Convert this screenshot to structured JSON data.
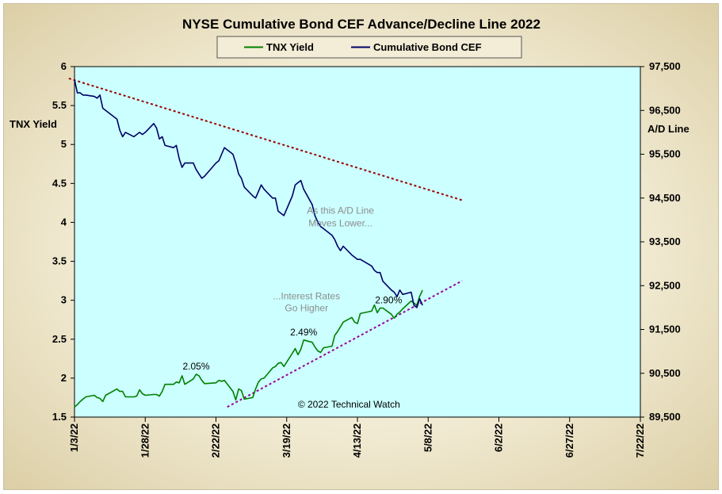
{
  "chart_data": {
    "type": "line",
    "title": "NYSE Cumulative  Bond CEF Advance/Decline  Line 2022",
    "legend": {
      "placement": "top-center",
      "entries": [
        "TNX Yield",
        "Cumulative Bond CEF"
      ]
    },
    "x_axis": {
      "type": "date",
      "range": [
        "2022-01-03",
        "2022-07-22"
      ],
      "tick_labels": [
        "1/3/22",
        "1/28/22",
        "2/22/22",
        "3/19/22",
        "4/13/22",
        "5/8/22",
        "6/2/22",
        "6/27/22",
        "7/22/22"
      ]
    },
    "y_left": {
      "label": "TNX Yield",
      "range": [
        1.5,
        6
      ],
      "tick_labels": [
        "1.5",
        "2",
        "2.5",
        "3",
        "3.5",
        "4",
        "4.5",
        "5",
        "5.5",
        "6"
      ]
    },
    "y_right": {
      "label": "A/D Line",
      "range": [
        89500,
        97500
      ],
      "tick_labels": [
        "89,500",
        "90,500",
        "91,500",
        "92,500",
        "93,500",
        "94,500",
        "95,500",
        "96,500",
        "97,500"
      ]
    },
    "grid": false,
    "series": [
      {
        "name": "TNX Yield",
        "axis": "left",
        "color": "#008000",
        "points": [
          [
            "2022-01-03",
            1.63
          ],
          [
            "2022-01-04",
            1.66
          ],
          [
            "2022-01-05",
            1.7
          ],
          [
            "2022-01-06",
            1.73
          ],
          [
            "2022-01-07",
            1.76
          ],
          [
            "2022-01-10",
            1.78
          ],
          [
            "2022-01-11",
            1.75
          ],
          [
            "2022-01-12",
            1.74
          ],
          [
            "2022-01-13",
            1.7
          ],
          [
            "2022-01-14",
            1.78
          ],
          [
            "2022-01-18",
            1.86
          ],
          [
            "2022-01-19",
            1.83
          ],
          [
            "2022-01-20",
            1.83
          ],
          [
            "2022-01-21",
            1.76
          ],
          [
            "2022-01-24",
            1.76
          ],
          [
            "2022-01-25",
            1.77
          ],
          [
            "2022-01-26",
            1.85
          ],
          [
            "2022-01-27",
            1.8
          ],
          [
            "2022-01-28",
            1.78
          ],
          [
            "2022-01-31",
            1.79
          ],
          [
            "2022-02-01",
            1.79
          ],
          [
            "2022-02-02",
            1.77
          ],
          [
            "2022-02-03",
            1.83
          ],
          [
            "2022-02-04",
            1.92
          ],
          [
            "2022-02-07",
            1.92
          ],
          [
            "2022-02-08",
            1.95
          ],
          [
            "2022-02-09",
            1.94
          ],
          [
            "2022-02-10",
            2.03
          ],
          [
            "2022-02-11",
            1.92
          ],
          [
            "2022-02-14",
            1.99
          ],
          [
            "2022-02-15",
            2.05
          ],
          [
            "2022-02-16",
            2.03
          ],
          [
            "2022-02-17",
            1.97
          ],
          [
            "2022-02-18",
            1.93
          ],
          [
            "2022-02-22",
            1.94
          ],
          [
            "2022-02-23",
            1.97
          ],
          [
            "2022-02-24",
            1.96
          ],
          [
            "2022-02-25",
            1.97
          ],
          [
            "2022-02-28",
            1.83
          ],
          [
            "2022-03-01",
            1.72
          ],
          [
            "2022-03-02",
            1.86
          ],
          [
            "2022-03-03",
            1.84
          ],
          [
            "2022-03-04",
            1.73
          ],
          [
            "2022-03-07",
            1.75
          ],
          [
            "2022-03-08",
            1.86
          ],
          [
            "2022-03-09",
            1.95
          ],
          [
            "2022-03-10",
            1.99
          ],
          [
            "2022-03-11",
            2.0
          ],
          [
            "2022-03-14",
            2.13
          ],
          [
            "2022-03-15",
            2.15
          ],
          [
            "2022-03-16",
            2.19
          ],
          [
            "2022-03-17",
            2.2
          ],
          [
            "2022-03-18",
            2.15
          ],
          [
            "2022-03-21",
            2.32
          ],
          [
            "2022-03-22",
            2.38
          ],
          [
            "2022-03-23",
            2.3
          ],
          [
            "2022-03-24",
            2.37
          ],
          [
            "2022-03-25",
            2.49
          ],
          [
            "2022-03-28",
            2.46
          ],
          [
            "2022-03-29",
            2.4
          ],
          [
            "2022-03-30",
            2.35
          ],
          [
            "2022-03-31",
            2.33
          ],
          [
            "2022-04-01",
            2.39
          ],
          [
            "2022-04-04",
            2.41
          ],
          [
            "2022-04-05",
            2.55
          ],
          [
            "2022-04-06",
            2.6
          ],
          [
            "2022-04-07",
            2.66
          ],
          [
            "2022-04-08",
            2.72
          ],
          [
            "2022-04-11",
            2.78
          ],
          [
            "2022-04-12",
            2.72
          ],
          [
            "2022-04-13",
            2.7
          ],
          [
            "2022-04-14",
            2.83
          ],
          [
            "2022-04-18",
            2.86
          ],
          [
            "2022-04-19",
            2.94
          ],
          [
            "2022-04-20",
            2.84
          ],
          [
            "2022-04-21",
            2.9
          ],
          [
            "2022-04-22",
            2.9
          ],
          [
            "2022-04-25",
            2.82
          ],
          [
            "2022-04-26",
            2.77
          ],
          [
            "2022-04-27",
            2.82
          ],
          [
            "2022-04-28",
            2.85
          ],
          [
            "2022-04-29",
            2.89
          ],
          [
            "2022-05-02",
            2.99
          ],
          [
            "2022-05-03",
            2.96
          ],
          [
            "2022-05-04",
            2.94
          ],
          [
            "2022-05-05",
            3.05
          ],
          [
            "2022-05-06",
            3.13
          ]
        ]
      },
      {
        "name": "Cumulative Bond CEF",
        "axis": "right",
        "color": "#000066",
        "points": [
          [
            "2022-01-03",
            97200
          ],
          [
            "2022-01-04",
            96900
          ],
          [
            "2022-01-05",
            96900
          ],
          [
            "2022-01-06",
            96850
          ],
          [
            "2022-01-07",
            96850
          ],
          [
            "2022-01-10",
            96820
          ],
          [
            "2022-01-11",
            96780
          ],
          [
            "2022-01-12",
            96850
          ],
          [
            "2022-01-13",
            96550
          ],
          [
            "2022-01-14",
            96500
          ],
          [
            "2022-01-18",
            96300
          ],
          [
            "2022-01-19",
            96050
          ],
          [
            "2022-01-20",
            95900
          ],
          [
            "2022-01-21",
            96000
          ],
          [
            "2022-01-24",
            95900
          ],
          [
            "2022-01-25",
            95950
          ],
          [
            "2022-01-26",
            96000
          ],
          [
            "2022-01-27",
            95950
          ],
          [
            "2022-01-28",
            96000
          ],
          [
            "2022-01-31",
            96200
          ],
          [
            "2022-02-01",
            96100
          ],
          [
            "2022-02-02",
            95850
          ],
          [
            "2022-02-03",
            95900
          ],
          [
            "2022-02-04",
            95700
          ],
          [
            "2022-02-07",
            95650
          ],
          [
            "2022-02-08",
            95700
          ],
          [
            "2022-02-09",
            95400
          ],
          [
            "2022-02-10",
            95200
          ],
          [
            "2022-02-11",
            95300
          ],
          [
            "2022-02-14",
            95300
          ],
          [
            "2022-02-15",
            95150
          ],
          [
            "2022-02-16",
            95050
          ],
          [
            "2022-02-17",
            94950
          ],
          [
            "2022-02-18",
            95000
          ],
          [
            "2022-02-22",
            95300
          ],
          [
            "2022-02-23",
            95350
          ],
          [
            "2022-02-24",
            95500
          ],
          [
            "2022-02-25",
            95650
          ],
          [
            "2022-02-28",
            95500
          ],
          [
            "2022-03-01",
            95300
          ],
          [
            "2022-03-02",
            95050
          ],
          [
            "2022-03-03",
            94950
          ],
          [
            "2022-03-04",
            94750
          ],
          [
            "2022-03-07",
            94550
          ],
          [
            "2022-03-08",
            94500
          ],
          [
            "2022-03-09",
            94650
          ],
          [
            "2022-03-10",
            94800
          ],
          [
            "2022-03-11",
            94700
          ],
          [
            "2022-03-14",
            94500
          ],
          [
            "2022-03-15",
            94500
          ],
          [
            "2022-03-16",
            94200
          ],
          [
            "2022-03-17",
            94150
          ],
          [
            "2022-03-18",
            94100
          ],
          [
            "2022-03-21",
            94550
          ],
          [
            "2022-03-22",
            94800
          ],
          [
            "2022-03-23",
            94850
          ],
          [
            "2022-03-24",
            94900
          ],
          [
            "2022-03-25",
            94700
          ],
          [
            "2022-03-28",
            94350
          ],
          [
            "2022-03-29",
            94100
          ],
          [
            "2022-03-30",
            93950
          ],
          [
            "2022-03-31",
            93850
          ],
          [
            "2022-04-01",
            93800
          ],
          [
            "2022-04-04",
            93650
          ],
          [
            "2022-04-05",
            93550
          ],
          [
            "2022-04-06",
            93400
          ],
          [
            "2022-04-07",
            93300
          ],
          [
            "2022-04-08",
            93400
          ],
          [
            "2022-04-11",
            93200
          ],
          [
            "2022-04-12",
            93150
          ],
          [
            "2022-04-13",
            93100
          ],
          [
            "2022-04-14",
            93100
          ],
          [
            "2022-04-18",
            92950
          ],
          [
            "2022-04-19",
            92850
          ],
          [
            "2022-04-20",
            92800
          ],
          [
            "2022-04-21",
            92800
          ],
          [
            "2022-04-22",
            92600
          ],
          [
            "2022-04-25",
            92400
          ],
          [
            "2022-04-26",
            92350
          ],
          [
            "2022-04-27",
            92250
          ],
          [
            "2022-04-28",
            92400
          ],
          [
            "2022-04-29",
            92300
          ],
          [
            "2022-05-02",
            92350
          ],
          [
            "2022-05-03",
            92050
          ],
          [
            "2022-05-04",
            92000
          ],
          [
            "2022-05-05",
            92200
          ],
          [
            "2022-05-06",
            92050
          ]
        ]
      }
    ],
    "trendlines": [
      {
        "axis": "right",
        "color": "#990000",
        "style": "dotted",
        "from": [
          "2022-01-01",
          97230
        ],
        "to": [
          "2022-05-20",
          94450
        ]
      },
      {
        "axis": "left",
        "color": "#990099",
        "style": "dotted",
        "from": [
          "2022-02-26",
          1.63
        ],
        "to": [
          "2022-05-20",
          3.25
        ]
      }
    ],
    "annotations": [
      {
        "text": "As this A/D Line",
        "x": "2022-04-07",
        "axis": "left",
        "y": 4.11,
        "color": "#8c8c8c"
      },
      {
        "text": "Moves Lower...",
        "x": "2022-04-07",
        "axis": "left",
        "y": 3.95,
        "color": "#8c8c8c"
      },
      {
        "text": "...Interest Rates",
        "x": "2022-03-26",
        "axis": "left",
        "y": 3.01,
        "color": "#8c8c8c"
      },
      {
        "text": "Go Higher",
        "x": "2022-03-26",
        "axis": "left",
        "y": 2.86,
        "color": "#8c8c8c"
      },
      {
        "text": "2.05%",
        "x": "2022-02-15",
        "axis": "left",
        "y": 2.11,
        "color": "#000000"
      },
      {
        "text": "2.49%",
        "x": "2022-03-25",
        "axis": "left",
        "y": 2.55,
        "color": "#000000"
      },
      {
        "text": "2.90%",
        "x": "2022-04-24",
        "axis": "left",
        "y": 2.96,
        "color": "#000000"
      },
      {
        "text": "© 2022 Technical  Watch",
        "x": "2022-04-10",
        "axis": "left",
        "y": 1.62,
        "color": "#000000"
      }
    ]
  }
}
